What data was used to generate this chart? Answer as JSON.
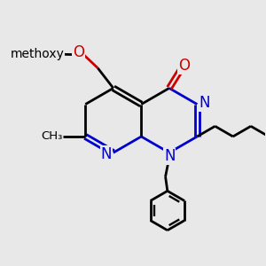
{
  "bg_color": "#e8e8e8",
  "bond_color": "#000000",
  "N_color": "#0000cc",
  "O_color": "#cc0000",
  "line_width": 2.0,
  "figsize": [
    3.0,
    3.0
  ],
  "dpi": 100,
  "xlim": [
    0,
    10
  ],
  "ylim": [
    0,
    10
  ]
}
